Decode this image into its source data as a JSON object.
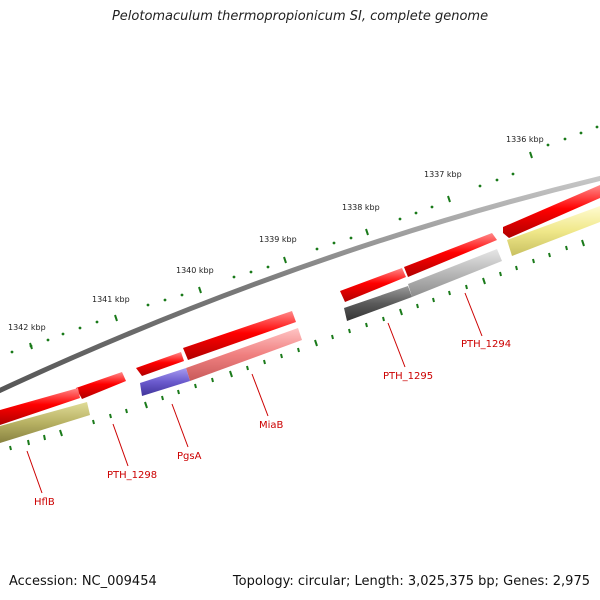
{
  "title": "Pelotomaculum thermopropionicum SI, complete genome",
  "accession": "Accession: NC_009454",
  "stats": "Topology: circular; Length: 3,025,375 bp; Genes: 2,975",
  "ruler_labels": [
    "1336 kbp",
    "1337 kbp",
    "1338 kbp",
    "1339 kbp",
    "1340 kbp",
    "1341 kbp",
    "1342 kbp"
  ],
  "gene_labels": [
    "PTH_1294",
    "PTH_1295",
    "MiaB",
    "PgsA",
    "PTH_1298",
    "HflB"
  ],
  "colors": {
    "backbone": "#888888",
    "gene_red": "#ff0000",
    "cds_gray_dark": "#606060",
    "cds_gray_light": "#bbbbbb",
    "cds_yellow": "#f0e890",
    "cds_olive": "#bdb76b",
    "cds_purple": "#6a5acd",
    "cds_pink": "#f08080",
    "tick_green": "#1a7a1a",
    "label_red": "#cc0000"
  }
}
